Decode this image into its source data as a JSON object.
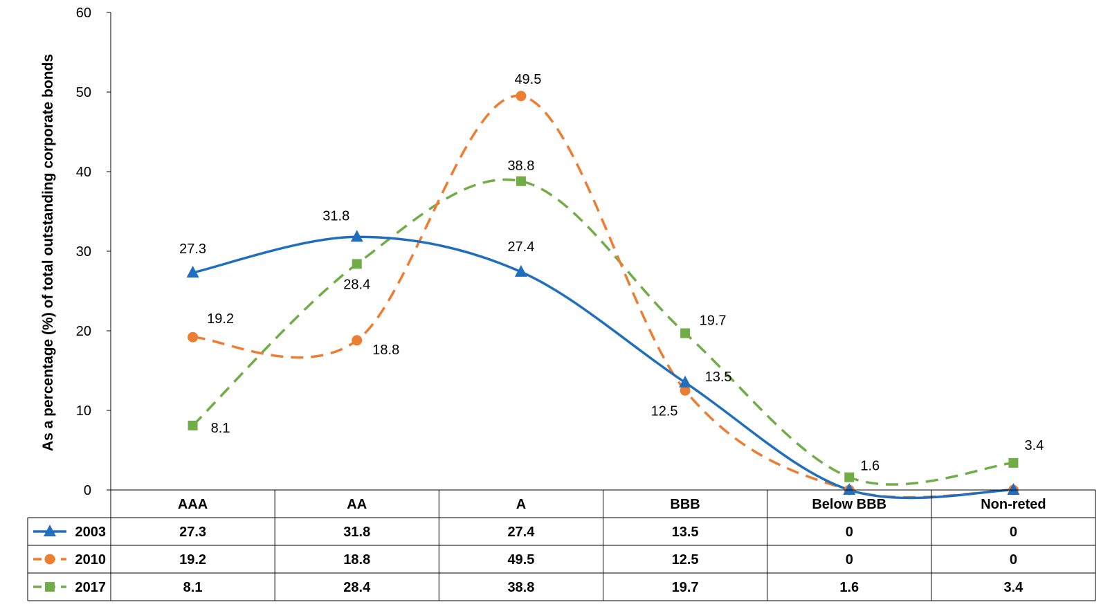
{
  "chart_data": {
    "type": "line",
    "categories": [
      "AAA",
      "AA",
      "A",
      "BBB",
      "Below BBB",
      "Non-reted"
    ],
    "ylabel": "As a percentage (%) of total outstanding corporate bonds",
    "ylim": [
      0,
      60
    ],
    "yticks": [
      0,
      10,
      20,
      30,
      40,
      50,
      60
    ],
    "grid": false,
    "legend": "data table below chart (left column)",
    "series": [
      {
        "name": "2003",
        "values": [
          27.3,
          31.8,
          27.4,
          13.5,
          0,
          0
        ],
        "color": "#1F6FBE",
        "marker": "triangle",
        "dash": "solid",
        "table_values": [
          "27.3",
          "31.8",
          "27.4",
          "13.5",
          "0",
          "0"
        ]
      },
      {
        "name": "2010",
        "values": [
          19.2,
          18.8,
          49.5,
          12.5,
          0,
          0
        ],
        "color": "#ED7D31",
        "marker": "circle",
        "dash": "dashed",
        "table_values": [
          "19.2",
          "18.8",
          "49.5",
          "12.5",
          "0",
          "0"
        ]
      },
      {
        "name": "2017",
        "values": [
          8.1,
          28.4,
          38.8,
          19.7,
          1.6,
          3.4
        ],
        "color": "#70AD47",
        "marker": "square",
        "dash": "dashed",
        "table_values": [
          "8.1",
          "28.4",
          "38.8",
          "19.7",
          "1.6",
          "3.4"
        ]
      }
    ],
    "data_labels": [
      [
        "27.3",
        "31.8",
        "27.4",
        "13.5",
        "",
        ""
      ],
      [
        "19.2",
        "18.8",
        "49.5",
        "12.5",
        "",
        ""
      ],
      [
        "8.1",
        "28.4",
        "38.8",
        "19.7",
        "1.6",
        "3.4"
      ]
    ]
  }
}
